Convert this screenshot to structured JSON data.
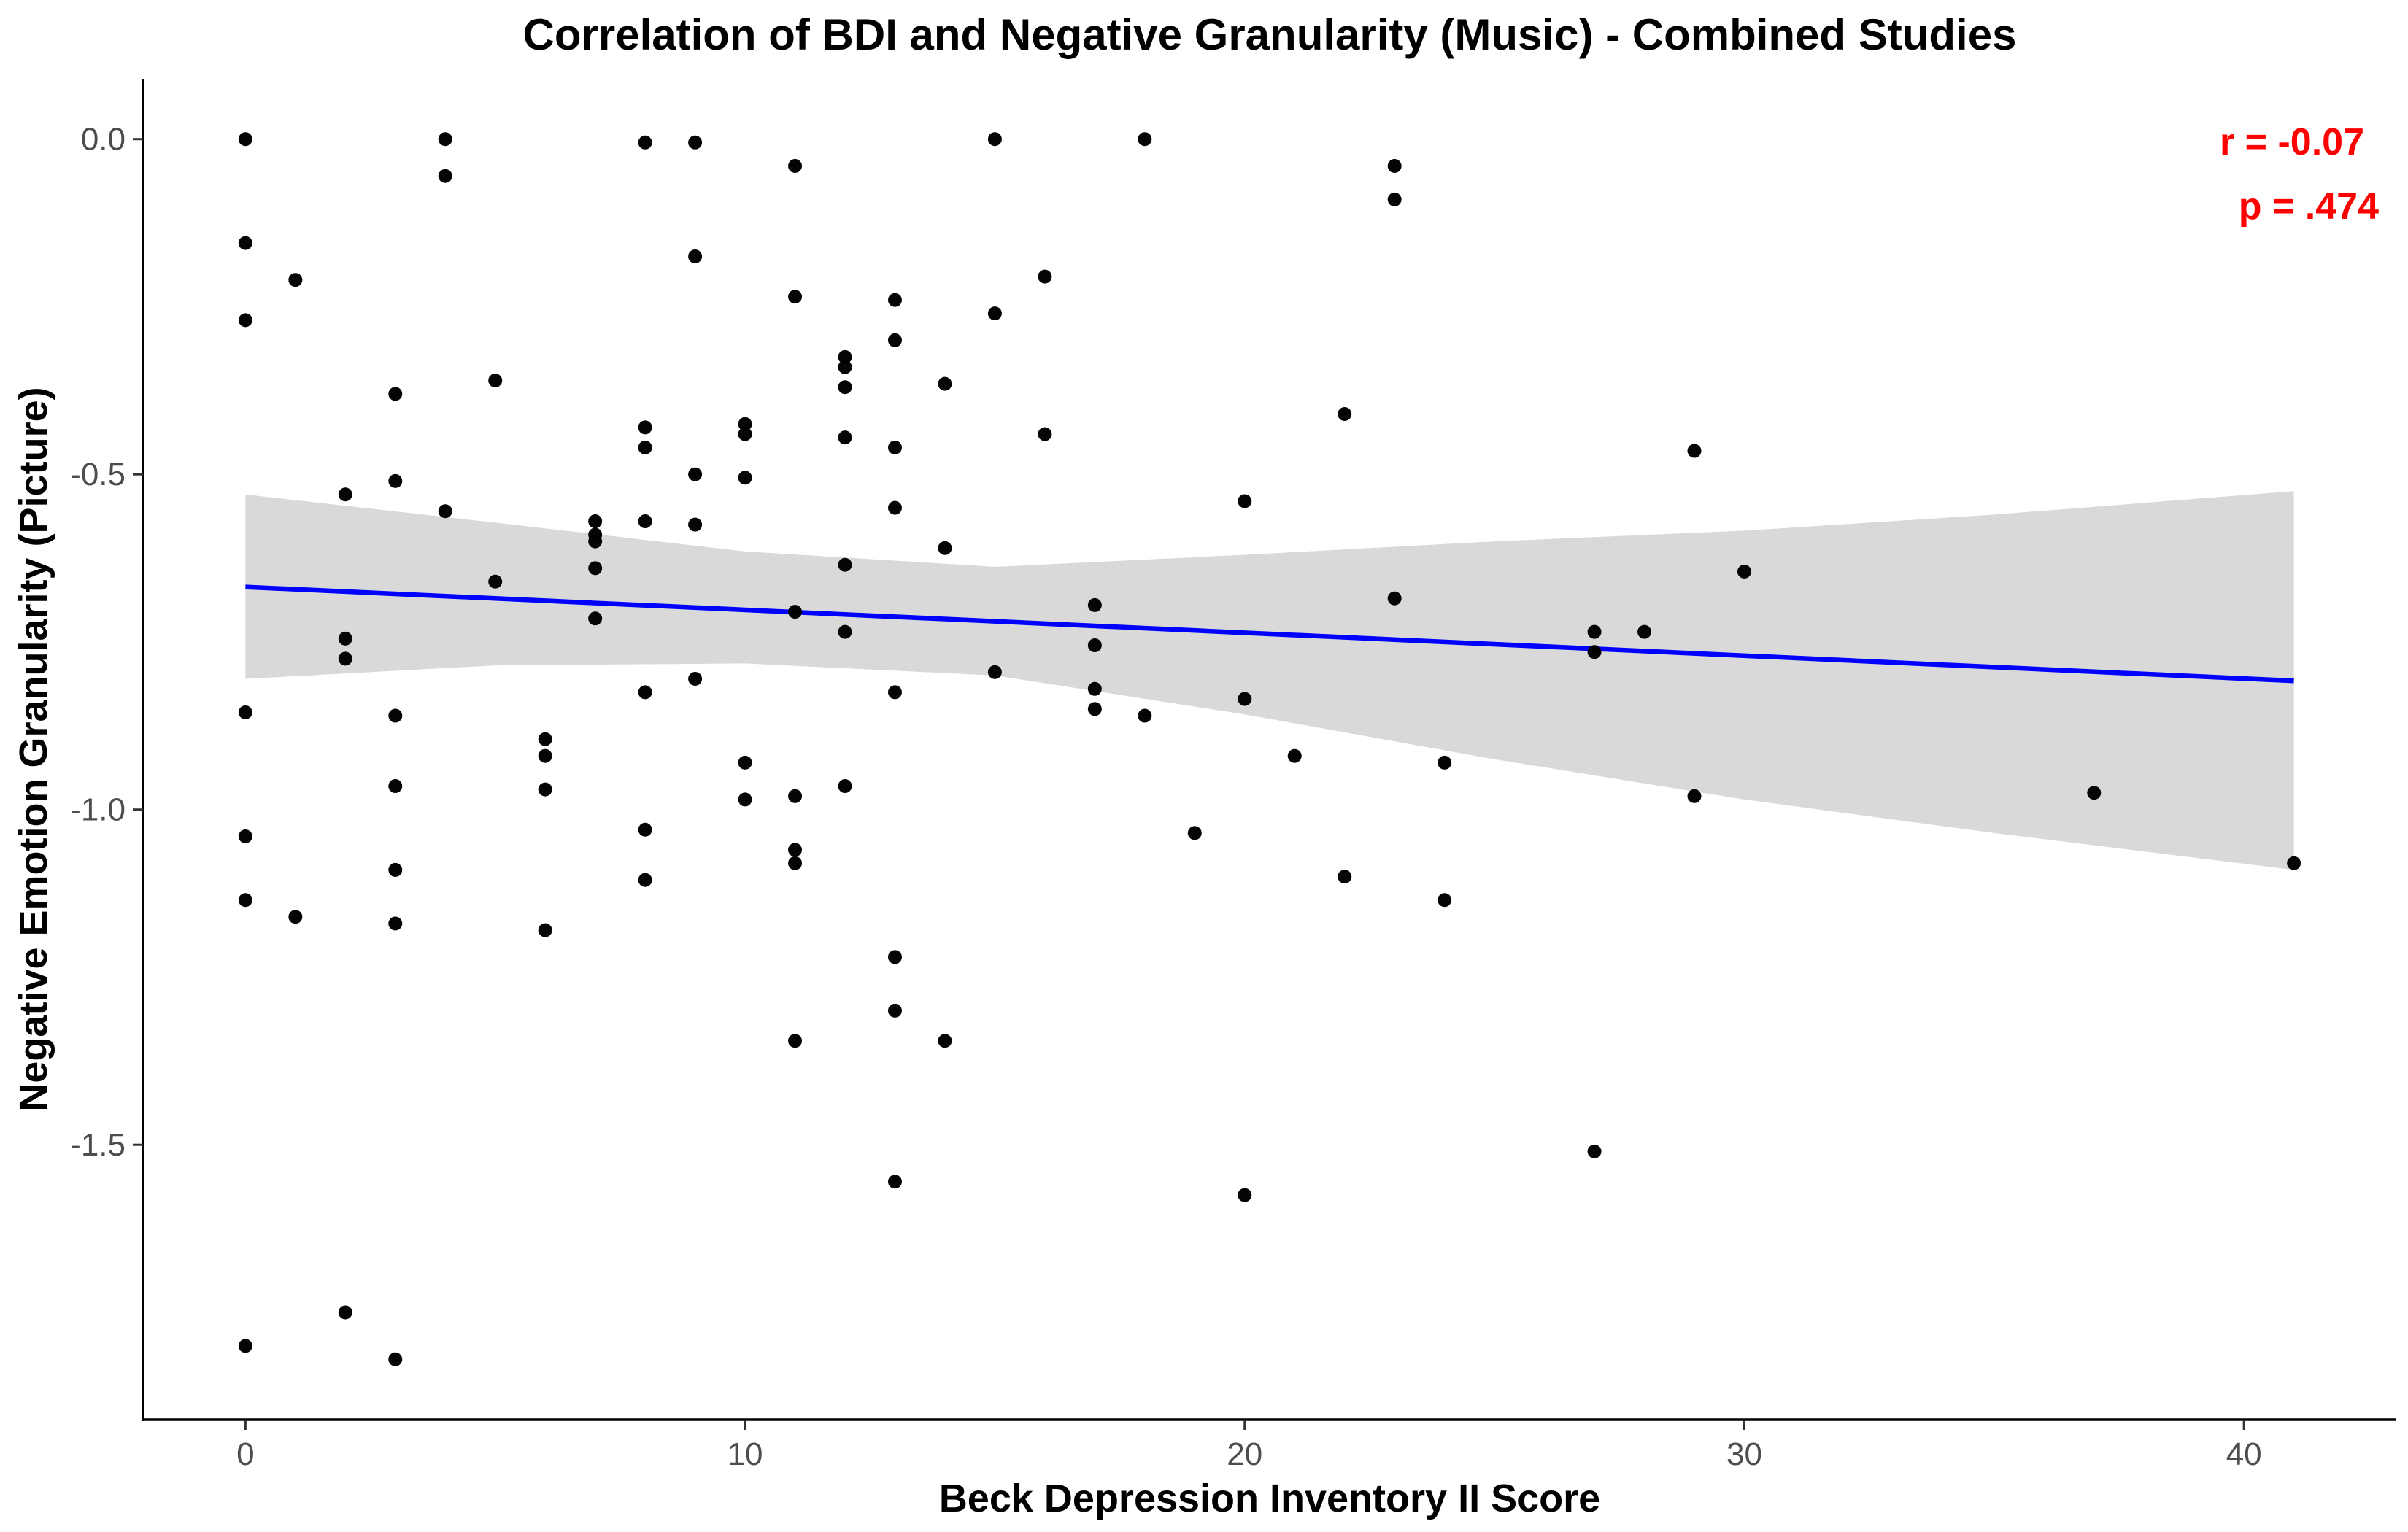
{
  "chart_data": {
    "type": "scatter",
    "title": "Correlation of BDI and Negative Granularity (Music) - Combined Studies",
    "xlabel": "Beck Depression Inventory II Score",
    "ylabel": "Negative Emotion Granularity (Picture)",
    "xlim": [
      -2.05,
      43.05
    ],
    "ylim": [
      -1.91,
      0.09
    ],
    "x_ticks": [
      0,
      10,
      20,
      30,
      40
    ],
    "x_tick_labels": [
      "0",
      "10",
      "20",
      "30",
      "40"
    ],
    "y_ticks": [
      0.0,
      -0.5,
      -1.0,
      -1.5
    ],
    "y_tick_labels": [
      "0.0",
      "-0.5",
      "-1.0",
      "-1.5"
    ],
    "grid": false,
    "annotations": {
      "r_text": "r = -0.07",
      "p_text": "p = .474",
      "color": "#ff0000",
      "placement": "top-right"
    },
    "regression": {
      "x_start": 0,
      "x_end": 41,
      "y_start": -0.668,
      "y_end": -0.808,
      "color": "#0000ff",
      "ci_upper": [
        [
          0,
          -0.53
        ],
        [
          5,
          -0.572
        ],
        [
          10,
          -0.615
        ],
        [
          15,
          -0.638
        ],
        [
          20,
          -0.62
        ],
        [
          25,
          -0.6
        ],
        [
          30,
          -0.584
        ],
        [
          35,
          -0.56
        ],
        [
          41,
          -0.525
        ]
      ],
      "ci_lower": [
        [
          0,
          -0.805
        ],
        [
          5,
          -0.785
        ],
        [
          10,
          -0.782
        ],
        [
          15,
          -0.8
        ],
        [
          20,
          -0.858
        ],
        [
          25,
          -0.925
        ],
        [
          30,
          -0.985
        ],
        [
          35,
          -1.035
        ],
        [
          41,
          -1.09
        ]
      ],
      "ci_color": "#d9d9d9"
    },
    "point_color": "#000000",
    "points": [
      {
        "x": 0,
        "y": 0.0
      },
      {
        "x": 0,
        "y": -0.155
      },
      {
        "x": 0,
        "y": -0.27
      },
      {
        "x": 0,
        "y": -0.855
      },
      {
        "x": 0,
        "y": -1.04
      },
      {
        "x": 0,
        "y": -1.135
      },
      {
        "x": 0,
        "y": -1.8
      },
      {
        "x": 1,
        "y": -0.21
      },
      {
        "x": 1,
        "y": -1.16
      },
      {
        "x": 2,
        "y": -0.53
      },
      {
        "x": 2,
        "y": -0.745
      },
      {
        "x": 2,
        "y": -0.775
      },
      {
        "x": 2,
        "y": -1.75
      },
      {
        "x": 3,
        "y": -0.38
      },
      {
        "x": 3,
        "y": -0.51
      },
      {
        "x": 3,
        "y": -0.86
      },
      {
        "x": 3,
        "y": -0.965
      },
      {
        "x": 3,
        "y": -1.09
      },
      {
        "x": 3,
        "y": -1.17
      },
      {
        "x": 3,
        "y": -1.82
      },
      {
        "x": 4,
        "y": 0.0
      },
      {
        "x": 4,
        "y": -0.055
      },
      {
        "x": 4,
        "y": -0.555
      },
      {
        "x": 5,
        "y": -0.36
      },
      {
        "x": 5,
        "y": -0.66
      },
      {
        "x": 6,
        "y": -0.895
      },
      {
        "x": 6,
        "y": -0.92
      },
      {
        "x": 6,
        "y": -0.97
      },
      {
        "x": 6,
        "y": -1.18
      },
      {
        "x": 7,
        "y": -0.57
      },
      {
        "x": 7,
        "y": -0.59
      },
      {
        "x": 7,
        "y": -0.6
      },
      {
        "x": 7,
        "y": -0.64
      },
      {
        "x": 7,
        "y": -0.715
      },
      {
        "x": 8,
        "y": -0.005
      },
      {
        "x": 8,
        "y": -0.43
      },
      {
        "x": 8,
        "y": -0.46
      },
      {
        "x": 8,
        "y": -0.57
      },
      {
        "x": 8,
        "y": -0.825
      },
      {
        "x": 8,
        "y": -1.03
      },
      {
        "x": 8,
        "y": -1.105
      },
      {
        "x": 9,
        "y": -0.005
      },
      {
        "x": 9,
        "y": -0.175
      },
      {
        "x": 9,
        "y": -0.5
      },
      {
        "x": 9,
        "y": -0.575
      },
      {
        "x": 9,
        "y": -0.805
      },
      {
        "x": 10,
        "y": -0.425
      },
      {
        "x": 10,
        "y": -0.44
      },
      {
        "x": 10,
        "y": -0.505
      },
      {
        "x": 10,
        "y": -0.93
      },
      {
        "x": 10,
        "y": -0.985
      },
      {
        "x": 11,
        "y": -0.04
      },
      {
        "x": 11,
        "y": -0.235
      },
      {
        "x": 11,
        "y": -0.705
      },
      {
        "x": 11,
        "y": -0.98
      },
      {
        "x": 11,
        "y": -1.06
      },
      {
        "x": 11,
        "y": -1.08
      },
      {
        "x": 11,
        "y": -1.345
      },
      {
        "x": 12,
        "y": -0.325
      },
      {
        "x": 12,
        "y": -0.34
      },
      {
        "x": 12,
        "y": -0.37
      },
      {
        "x": 12,
        "y": -0.445
      },
      {
        "x": 12,
        "y": -0.635
      },
      {
        "x": 12,
        "y": -0.735
      },
      {
        "x": 12,
        "y": -0.965
      },
      {
        "x": 13,
        "y": -0.24
      },
      {
        "x": 13,
        "y": -0.3
      },
      {
        "x": 13,
        "y": -0.46
      },
      {
        "x": 13,
        "y": -0.55
      },
      {
        "x": 13,
        "y": -0.825
      },
      {
        "x": 13,
        "y": -1.22
      },
      {
        "x": 13,
        "y": -1.3
      },
      {
        "x": 13,
        "y": -1.555
      },
      {
        "x": 14,
        "y": -0.365
      },
      {
        "x": 14,
        "y": -0.61
      },
      {
        "x": 14,
        "y": -1.345
      },
      {
        "x": 15,
        "y": 0.0
      },
      {
        "x": 15,
        "y": -0.26
      },
      {
        "x": 15,
        "y": -0.795
      },
      {
        "x": 16,
        "y": -0.205
      },
      {
        "x": 16,
        "y": -0.44
      },
      {
        "x": 17,
        "y": -0.695
      },
      {
        "x": 17,
        "y": -0.755
      },
      {
        "x": 17,
        "y": -0.82
      },
      {
        "x": 17,
        "y": -0.85
      },
      {
        "x": 18,
        "y": 0.0
      },
      {
        "x": 18,
        "y": -0.86
      },
      {
        "x": 19,
        "y": -1.035
      },
      {
        "x": 20,
        "y": -0.54
      },
      {
        "x": 20,
        "y": -0.835
      },
      {
        "x": 20,
        "y": -1.575
      },
      {
        "x": 21,
        "y": -0.92
      },
      {
        "x": 22,
        "y": -0.41
      },
      {
        "x": 22,
        "y": -1.1
      },
      {
        "x": 23,
        "y": -0.04
      },
      {
        "x": 23,
        "y": -0.09
      },
      {
        "x": 23,
        "y": -0.685
      },
      {
        "x": 24,
        "y": -0.93
      },
      {
        "x": 24,
        "y": -1.135
      },
      {
        "x": 27,
        "y": -0.735
      },
      {
        "x": 27,
        "y": -0.765
      },
      {
        "x": 27,
        "y": -1.51
      },
      {
        "x": 28,
        "y": -0.735
      },
      {
        "x": 29,
        "y": -0.465
      },
      {
        "x": 29,
        "y": -0.98
      },
      {
        "x": 30,
        "y": -0.645
      },
      {
        "x": 37,
        "y": -0.975
      },
      {
        "x": 41,
        "y": -1.08
      }
    ]
  }
}
